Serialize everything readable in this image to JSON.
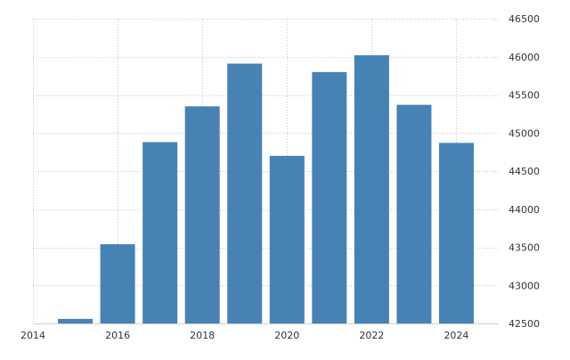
{
  "chart_data": {
    "type": "bar",
    "title": "",
    "xlabel": "",
    "ylabel": "",
    "x": [
      2015,
      2016,
      2017,
      2018,
      2019,
      2020,
      2021,
      2022,
      2023,
      2024
    ],
    "values": [
      42560,
      43540,
      44880,
      45350,
      45910,
      44700,
      45800,
      46020,
      45370,
      44870
    ],
    "xlim": [
      2014,
      2025
    ],
    "ylim": [
      42500,
      46500
    ],
    "x_ticks": [
      2014,
      2016,
      2018,
      2020,
      2022,
      2024
    ],
    "x_tick_labels": [
      "2014",
      "2016",
      "2018",
      "2020",
      "2022",
      "2024"
    ],
    "y_ticks": [
      42500,
      43000,
      43500,
      44000,
      44500,
      45000,
      45500,
      46000,
      46500
    ],
    "y_tick_labels": [
      "42500",
      "43000",
      "43500",
      "44000",
      "44500",
      "45000",
      "45500",
      "46000",
      "46500"
    ],
    "y_axis_side": "right",
    "grid": true,
    "legend": "none",
    "bar_color": "#4682b4"
  }
}
